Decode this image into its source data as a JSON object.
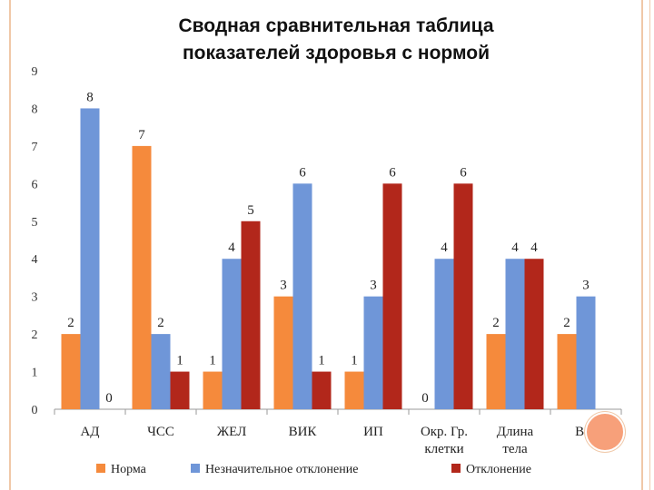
{
  "title_line1": "Сводная сравнительная таблица",
  "title_line2": "показателей здоровья с нормой",
  "chart_data": {
    "type": "bar",
    "title": "Сводная сравнительная таблица показателей здоровья с нормой",
    "categories": [
      [
        "АД"
      ],
      [
        "ЧСС"
      ],
      [
        "ЖЕЛ"
      ],
      [
        "ВИК"
      ],
      [
        "ИП"
      ],
      [
        "Окр. Гр.",
        "клетки"
      ],
      [
        "Длина",
        "тела"
      ],
      [
        "Вес"
      ]
    ],
    "series": [
      {
        "name": "Норма",
        "color": "#f58a3c",
        "values": [
          2,
          7,
          1,
          3,
          1,
          0,
          2,
          2
        ]
      },
      {
        "name": "Незначительное отклонение",
        "color": "#6f96d8",
        "values": [
          8,
          2,
          4,
          6,
          3,
          4,
          4,
          3
        ]
      },
      {
        "name": "Отклонение",
        "color": "#b2271b",
        "values": [
          0,
          1,
          5,
          1,
          6,
          6,
          4,
          null
        ]
      }
    ],
    "ylim": [
      0,
      9
    ],
    "yticks": [
      0,
      1,
      2,
      3,
      4,
      5,
      6,
      7,
      8,
      9
    ],
    "legend_position": "bottom",
    "grid": false
  }
}
